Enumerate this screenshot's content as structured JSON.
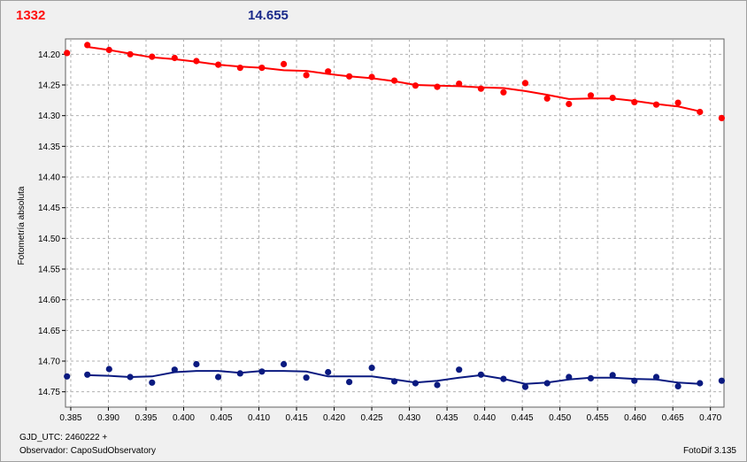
{
  "header": {
    "left_value": "1332",
    "right_value": "14.655"
  },
  "footer": {
    "gjd": "GJD_UTC: 2460222 +",
    "observer": "Observador: CapoSudObservatory",
    "software": "FotoDif 3.135"
  },
  "colors": {
    "series_red": "#ff0000",
    "series_blue": "#0a1a80",
    "grid": "#b0b0b0"
  },
  "chart_data": {
    "type": "scatter",
    "title": "",
    "xlabel": "",
    "ylabel": "Fotometría absoluta",
    "xlim": [
      0.3843,
      0.4718
    ],
    "ylim": [
      14.175,
      14.775
    ],
    "y_inverted": true,
    "grid": true,
    "x_ticks": [
      "0.385",
      "0.390",
      "0.395",
      "0.400",
      "0.405",
      "0.410",
      "0.415",
      "0.420",
      "0.425",
      "0.430",
      "0.435",
      "0.440",
      "0.445",
      "0.450",
      "0.455",
      "0.460",
      "0.465",
      "0.470"
    ],
    "x_tick_values": [
      0.385,
      0.39,
      0.395,
      0.4,
      0.405,
      0.41,
      0.415,
      0.42,
      0.425,
      0.43,
      0.435,
      0.44,
      0.445,
      0.45,
      0.455,
      0.46,
      0.465,
      0.47
    ],
    "y_ticks": [
      "14.20",
      "14.25",
      "14.30",
      "14.35",
      "14.40",
      "14.45",
      "14.50",
      "14.55",
      "14.60",
      "14.65",
      "14.70",
      "14.75"
    ],
    "y_tick_values": [
      14.2,
      14.25,
      14.3,
      14.35,
      14.4,
      14.45,
      14.5,
      14.55,
      14.6,
      14.65,
      14.7,
      14.75
    ],
    "series": [
      {
        "color": "#ff0000",
        "points": [
          [
            0.3845,
            14.198
          ],
          [
            0.3872,
            14.185
          ],
          [
            0.3901,
            14.193
          ],
          [
            0.3929,
            14.2
          ],
          [
            0.3958,
            14.204
          ],
          [
            0.3988,
            14.206
          ],
          [
            0.4017,
            14.211
          ],
          [
            0.4046,
            14.217
          ],
          [
            0.4075,
            14.222
          ],
          [
            0.4104,
            14.222
          ],
          [
            0.4133,
            14.216
          ],
          [
            0.4163,
            14.234
          ],
          [
            0.4192,
            14.228
          ],
          [
            0.422,
            14.236
          ],
          [
            0.425,
            14.237
          ],
          [
            0.428,
            14.243
          ],
          [
            0.4308,
            14.251
          ],
          [
            0.4337,
            14.253
          ],
          [
            0.4366,
            14.248
          ],
          [
            0.4395,
            14.256
          ],
          [
            0.4425,
            14.262
          ],
          [
            0.4454,
            14.247
          ],
          [
            0.4483,
            14.272
          ],
          [
            0.4512,
            14.281
          ],
          [
            0.4541,
            14.267
          ],
          [
            0.457,
            14.271
          ],
          [
            0.4599,
            14.278
          ],
          [
            0.4628,
            14.282
          ],
          [
            0.4657,
            14.279
          ],
          [
            0.4686,
            14.294
          ],
          [
            0.4715,
            14.304
          ]
        ],
        "trend": [
          [
            0.3872,
            14.188
          ],
          [
            0.3901,
            14.193
          ],
          [
            0.3929,
            14.199
          ],
          [
            0.3958,
            14.205
          ],
          [
            0.3988,
            14.208
          ],
          [
            0.4017,
            14.212
          ],
          [
            0.4046,
            14.217
          ],
          [
            0.4075,
            14.22
          ],
          [
            0.4104,
            14.222
          ],
          [
            0.4133,
            14.226
          ],
          [
            0.4163,
            14.227
          ],
          [
            0.4192,
            14.232
          ],
          [
            0.422,
            14.236
          ],
          [
            0.425,
            14.239
          ],
          [
            0.428,
            14.244
          ],
          [
            0.4308,
            14.25
          ],
          [
            0.4337,
            14.251
          ],
          [
            0.4366,
            14.252
          ],
          [
            0.4395,
            14.254
          ],
          [
            0.4425,
            14.255
          ],
          [
            0.4454,
            14.26
          ],
          [
            0.4483,
            14.266
          ],
          [
            0.4512,
            14.273
          ],
          [
            0.4541,
            14.272
          ],
          [
            0.457,
            14.272
          ],
          [
            0.4599,
            14.276
          ],
          [
            0.4628,
            14.281
          ],
          [
            0.4657,
            14.285
          ],
          [
            0.4686,
            14.293
          ]
        ]
      },
      {
        "color": "#0a1a80",
        "points": [
          [
            0.3845,
            14.725
          ],
          [
            0.3872,
            14.722
          ],
          [
            0.3901,
            14.713
          ],
          [
            0.3929,
            14.726
          ],
          [
            0.3958,
            14.735
          ],
          [
            0.3988,
            14.714
          ],
          [
            0.4017,
            14.705
          ],
          [
            0.4046,
            14.726
          ],
          [
            0.4075,
            14.72
          ],
          [
            0.4104,
            14.717
          ],
          [
            0.4133,
            14.705
          ],
          [
            0.4163,
            14.727
          ],
          [
            0.4192,
            14.718
          ],
          [
            0.422,
            14.734
          ],
          [
            0.425,
            14.711
          ],
          [
            0.428,
            14.733
          ],
          [
            0.4308,
            14.736
          ],
          [
            0.4337,
            14.739
          ],
          [
            0.4366,
            14.714
          ],
          [
            0.4395,
            14.722
          ],
          [
            0.4425,
            14.729
          ],
          [
            0.4454,
            14.742
          ],
          [
            0.4483,
            14.736
          ],
          [
            0.4512,
            14.726
          ],
          [
            0.4541,
            14.728
          ],
          [
            0.457,
            14.723
          ],
          [
            0.4599,
            14.732
          ],
          [
            0.4628,
            14.726
          ],
          [
            0.4657,
            14.741
          ],
          [
            0.4686,
            14.736
          ],
          [
            0.4715,
            14.732
          ]
        ],
        "trend": [
          [
            0.3872,
            14.723
          ],
          [
            0.3901,
            14.724
          ],
          [
            0.3929,
            14.726
          ],
          [
            0.3958,
            14.725
          ],
          [
            0.3988,
            14.718
          ],
          [
            0.4017,
            14.716
          ],
          [
            0.4046,
            14.716
          ],
          [
            0.4075,
            14.719
          ],
          [
            0.4104,
            14.716
          ],
          [
            0.4133,
            14.716
          ],
          [
            0.4163,
            14.717
          ],
          [
            0.4192,
            14.725
          ],
          [
            0.422,
            14.725
          ],
          [
            0.425,
            14.725
          ],
          [
            0.428,
            14.73
          ],
          [
            0.4308,
            14.735
          ],
          [
            0.4337,
            14.732
          ],
          [
            0.4366,
            14.727
          ],
          [
            0.4395,
            14.723
          ],
          [
            0.4425,
            14.729
          ],
          [
            0.4454,
            14.737
          ],
          [
            0.4483,
            14.735
          ],
          [
            0.4512,
            14.73
          ],
          [
            0.4541,
            14.727
          ],
          [
            0.457,
            14.727
          ],
          [
            0.4599,
            14.729
          ],
          [
            0.4628,
            14.73
          ],
          [
            0.4657,
            14.735
          ],
          [
            0.4686,
            14.737
          ]
        ]
      }
    ]
  }
}
